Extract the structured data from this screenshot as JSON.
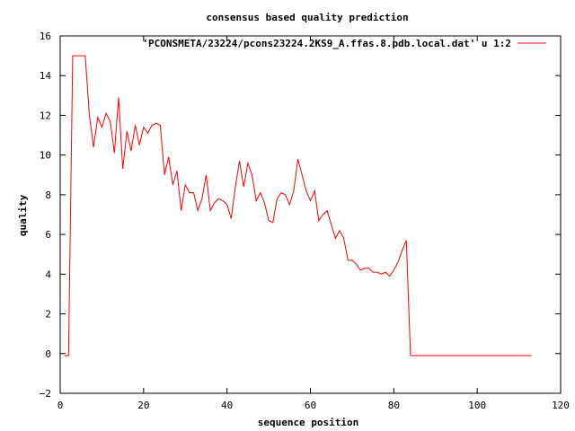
{
  "chart_data": {
    "type": "line",
    "title": "consensus based quality prediction",
    "xlabel": "sequence position",
    "ylabel": "quality",
    "xlim": [
      0,
      120
    ],
    "ylim": [
      -2,
      16
    ],
    "xticks": [
      0,
      20,
      40,
      60,
      80,
      100,
      120
    ],
    "yticks": [
      -2,
      0,
      2,
      4,
      6,
      8,
      10,
      12,
      14,
      16
    ],
    "grid": false,
    "legend": "top-right",
    "series": [
      {
        "name": "'PCONSMETA/23224/pcons23224.2KS9_A.ffas.8.pdb.local.dat' u 1:2",
        "color": "#ff0000",
        "x": [
          1,
          2,
          3,
          4,
          5,
          6,
          7,
          8,
          9,
          10,
          11,
          12,
          13,
          14,
          15,
          16,
          17,
          18,
          19,
          20,
          21,
          22,
          23,
          24,
          25,
          26,
          27,
          28,
          29,
          30,
          31,
          32,
          33,
          34,
          35,
          36,
          37,
          38,
          39,
          40,
          41,
          42,
          43,
          44,
          45,
          46,
          47,
          48,
          49,
          50,
          51,
          52,
          53,
          54,
          55,
          56,
          57,
          58,
          59,
          60,
          61,
          62,
          63,
          64,
          65,
          66,
          67,
          68,
          69,
          70,
          71,
          72,
          73,
          74,
          75,
          76,
          77,
          78,
          79,
          80,
          81,
          82,
          83,
          84,
          85,
          113
        ],
        "y": [
          -0.1,
          -0.1,
          15.0,
          15.0,
          15.0,
          15.0,
          12.0,
          10.4,
          11.9,
          11.4,
          12.1,
          11.7,
          10.1,
          12.9,
          9.3,
          11.2,
          10.2,
          11.5,
          10.5,
          11.4,
          11.1,
          11.5,
          11.6,
          11.5,
          9.0,
          9.9,
          8.5,
          9.2,
          7.2,
          8.5,
          8.1,
          8.1,
          7.2,
          7.8,
          9.0,
          7.2,
          7.6,
          7.8,
          7.7,
          7.5,
          6.8,
          8.4,
          9.7,
          8.4,
          9.6,
          9.0,
          7.7,
          8.1,
          7.6,
          6.7,
          6.6,
          7.8,
          8.1,
          8.0,
          7.5,
          8.2,
          9.8,
          9.0,
          8.2,
          7.7,
          8.2,
          6.7,
          7.0,
          7.2,
          6.5,
          5.8,
          6.2,
          5.8,
          4.7,
          4.7,
          4.5,
          4.2,
          4.3,
          4.3,
          4.1,
          4.1,
          4.0,
          4.1,
          3.9,
          4.2,
          4.6,
          5.2,
          5.7,
          -0.1,
          -0.1,
          -0.1
        ]
      }
    ]
  }
}
